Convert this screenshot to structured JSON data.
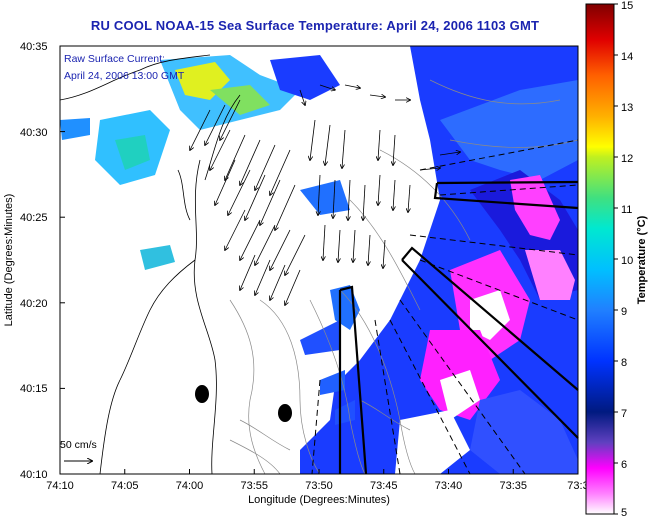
{
  "title": "RU COOL  NOAA-15  Sea Surface Temperature:  April 24, 2006 1103 GMT",
  "current_label": {
    "line1": "Raw Surface Current:",
    "line2": "April 24, 2006 13:00 GMT"
  },
  "scale_label": "50 cm/s",
  "axes": {
    "xlabel": "Longitude (Degrees:Minutes)",
    "ylabel": "Latitude (Degrees:Minutes)",
    "xticks": [
      "74:10",
      "74:05",
      "74:00",
      "73:55",
      "73:50",
      "73:45",
      "73:40",
      "73:35",
      "73:3"
    ],
    "yticks": [
      "40:35",
      "40:30",
      "40:25",
      "40:20",
      "40:15",
      "40:10"
    ]
  },
  "colorbar": {
    "title": "Temperature (°C)",
    "ticks": [
      "15",
      "14",
      "13",
      "12",
      "11",
      "10",
      "9",
      "8",
      "7",
      "6",
      "5"
    ],
    "colors": {
      "high": "#8b0000",
      "orange": "#ff8c00",
      "yellow": "#ffff00",
      "green": "#40e080",
      "cyan": "#00e0ff",
      "blue": "#0033ff",
      "navy": "#001a80",
      "magenta": "#ff00ff",
      "low": "#ffe0ff"
    }
  }
}
